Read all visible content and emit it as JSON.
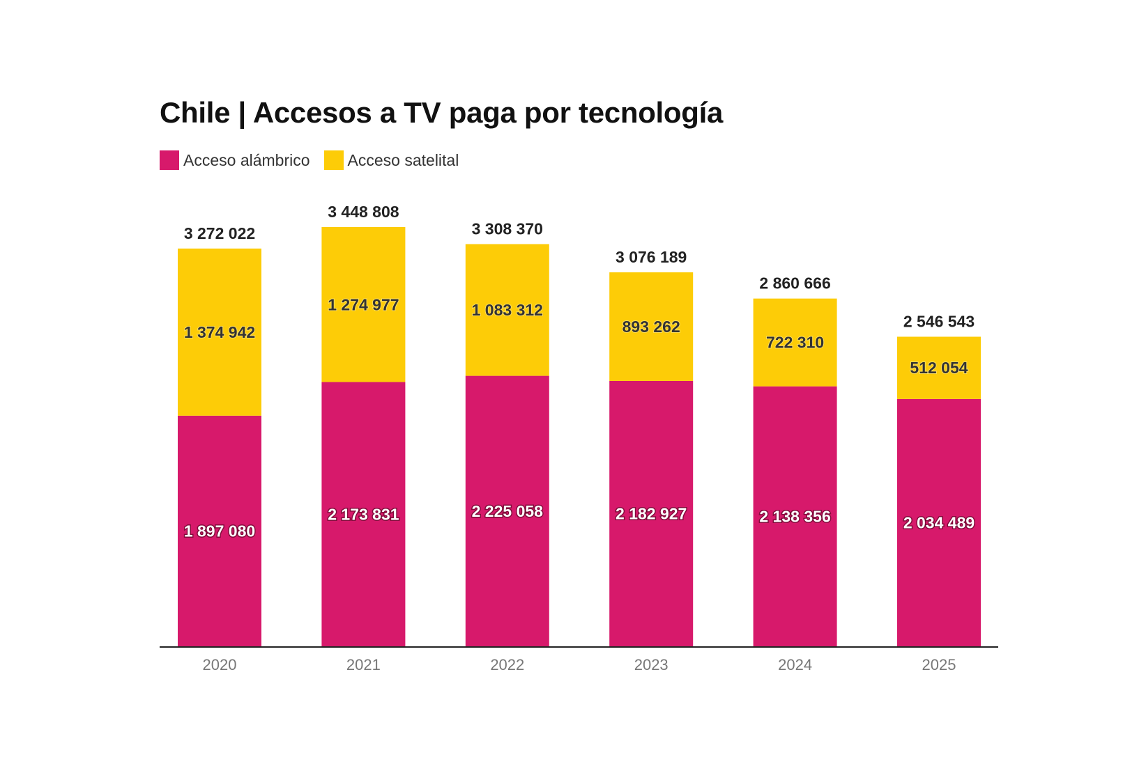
{
  "chart_data": {
    "type": "bar",
    "stacked": true,
    "title": "Chile | Accesos a TV paga por tecnología",
    "xlabel": "",
    "ylabel": "",
    "categories": [
      "2020",
      "2021",
      "2022",
      "2023",
      "2024",
      "2025"
    ],
    "series": [
      {
        "name": "Acceso alámbrico",
        "color": "#d7196b",
        "values": [
          1897080,
          2173831,
          2225058,
          2182927,
          2138356,
          2034489
        ],
        "labels": [
          "1 897 080",
          "2 173 831",
          "2 225 058",
          "2 182 927",
          "2 138 356",
          "2 034 489"
        ]
      },
      {
        "name": "Acceso satelital",
        "color": "#fdcc07",
        "values": [
          1374942,
          1274977,
          1083312,
          893262,
          722310,
          512054
        ],
        "labels": [
          "1 374 942",
          "1 274 977",
          "1 083 312",
          "893 262",
          "722 310",
          "512 054"
        ]
      }
    ],
    "totals": [
      3272022,
      3448808,
      3308370,
      3076189,
      2860666,
      2546543
    ],
    "total_labels": [
      "3 272 022",
      "3 448 808",
      "3 308 370",
      "3 076 189",
      "2 860 666",
      "2 546 543"
    ],
    "ylim": [
      0,
      3448808
    ],
    "legend_position": "top-left",
    "grid": false,
    "axis_color": "#222222"
  }
}
